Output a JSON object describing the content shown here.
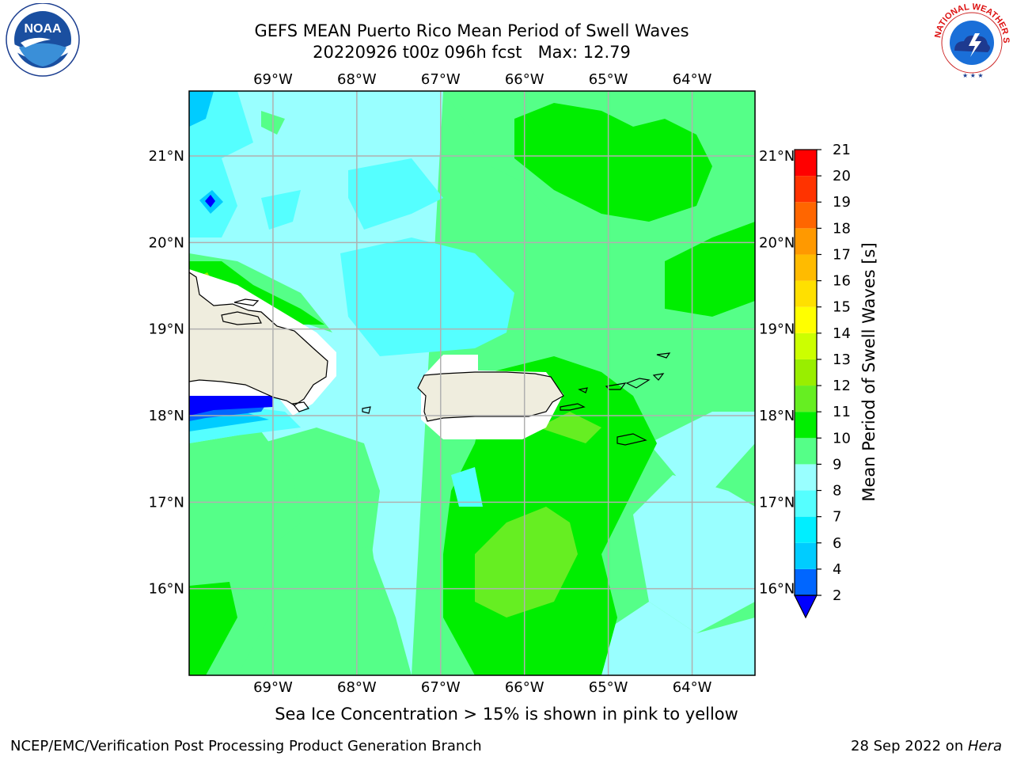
{
  "title": {
    "line1": "GEFS MEAN Puerto Rico Mean Period of Swell Waves",
    "line2": "20220926 t00z 096h fcst   Max: 12.79"
  },
  "map": {
    "lon_labels": [
      "69°W",
      "68°W",
      "67°W",
      "66°W",
      "65°W",
      "64°W"
    ],
    "lat_labels": [
      "21°N",
      "20°N",
      "19°N",
      "18°N",
      "17°N",
      "16°N"
    ],
    "lon_values": [
      -69,
      -68,
      -67,
      -66,
      -65,
      -64
    ],
    "lat_values": [
      21,
      20,
      19,
      18,
      17,
      16
    ],
    "lon_range": [
      -70,
      -63.25
    ],
    "lat_range": [
      15,
      21.75
    ],
    "grid": true,
    "land_color": "#efedde",
    "coast_color": "#000000",
    "grid_color": "#b0b0b0"
  },
  "colorbar": {
    "label": "Mean Period of Swell Waves [s]",
    "ticks": [
      "2",
      "4",
      "6",
      "7",
      "8",
      "9",
      "10",
      "11",
      "12",
      "13",
      "14",
      "15",
      "16",
      "17",
      "18",
      "19",
      "20",
      "21"
    ],
    "colors": [
      "#0000ff",
      "#0066ff",
      "#00ccff",
      "#00eeff",
      "#55ffff",
      "#99ffff",
      "#55ff88",
      "#00ee00",
      "#66ee22",
      "#99ee00",
      "#ccff00",
      "#ffff00",
      "#ffe000",
      "#ffbb00",
      "#ff9900",
      "#ff6600",
      "#ff3300",
      "#ff0000"
    ],
    "extend": "min"
  },
  "caption": "Sea Ice Concentration > 15% is shown in pink to yellow",
  "footer": {
    "left": "NCEP/EMC/Verification Post Processing Product Generation Branch",
    "right_prefix": "28 Sep 2022 on ",
    "right_host": "Hera"
  },
  "logos": {
    "left_text": "NOAA",
    "right_text": "NATIONAL WEATHER SERVICE"
  }
}
